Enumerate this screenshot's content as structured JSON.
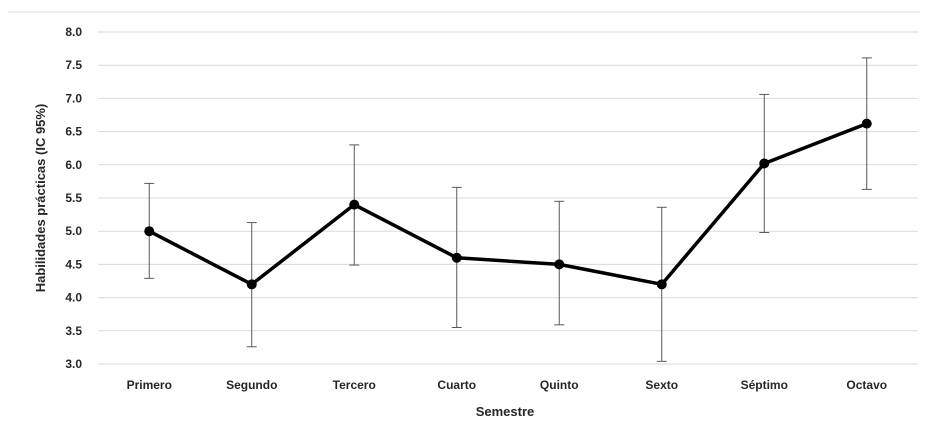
{
  "chart_data": {
    "type": "line",
    "title": "",
    "xlabel": "Semestre",
    "ylabel": "Habilidades prácticas (IC 95%)",
    "categories": [
      "Primero",
      "Segundo",
      "Tercero",
      "Cuarto",
      "Quinto",
      "Sexto",
      "Séptimo",
      "Octavo"
    ],
    "series": [
      {
        "values": [
          5.0,
          4.2,
          5.4,
          4.6,
          4.5,
          4.2,
          6.02,
          6.62
        ],
        "ci_upper": [
          5.72,
          5.13,
          6.3,
          5.66,
          5.45,
          5.36,
          7.06,
          7.61
        ],
        "ci_lower": [
          4.29,
          3.26,
          4.49,
          3.55,
          3.59,
          3.04,
          4.98,
          5.63
        ]
      }
    ],
    "ylim": [
      3.0,
      8.0
    ],
    "yticks": [
      "3.0",
      "3.5",
      "4.0",
      "4.5",
      "5.0",
      "5.5",
      "6.0",
      "6.5",
      "7.0",
      "7.5",
      "8.0"
    ],
    "grid": true,
    "legend": "none",
    "colors": {
      "line": "#000000",
      "error_bar": "#595959",
      "grid": "#d9d9d9",
      "text": "#262626"
    }
  }
}
